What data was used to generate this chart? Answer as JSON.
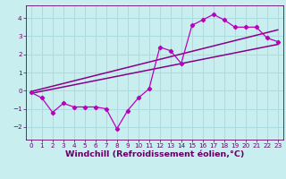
{
  "title": "",
  "xlabel": "Windchill (Refroidissement éolien,°C)",
  "ylabel": "",
  "bg_color": "#c8eef0",
  "grid_color": "#a8dce0",
  "line_color": "#880088",
  "line_color2": "#bb00bb",
  "xlim": [
    -0.5,
    23.5
  ],
  "ylim": [
    -2.7,
    4.7
  ],
  "xticks": [
    0,
    1,
    2,
    3,
    4,
    5,
    6,
    7,
    8,
    9,
    10,
    11,
    12,
    13,
    14,
    15,
    16,
    17,
    18,
    19,
    20,
    21,
    22,
    23
  ],
  "yticks": [
    -2,
    -1,
    0,
    1,
    2,
    3,
    4
  ],
  "data_x": [
    0,
    1,
    2,
    3,
    4,
    5,
    6,
    7,
    8,
    9,
    10,
    11,
    12,
    13,
    14,
    15,
    16,
    17,
    18,
    19,
    20,
    21,
    22,
    23
  ],
  "data_y": [
    -0.1,
    -0.4,
    -1.2,
    -0.7,
    -0.9,
    -0.9,
    -0.9,
    -1.0,
    -2.1,
    -1.1,
    -0.4,
    0.1,
    2.4,
    2.2,
    1.5,
    3.6,
    3.9,
    4.2,
    3.9,
    3.5,
    3.5,
    3.5,
    2.9,
    2.7
  ],
  "trend1_x": [
    0,
    23
  ],
  "trend1_y": [
    -0.15,
    2.55
  ],
  "trend2_x": [
    0,
    23
  ],
  "trend2_y": [
    -0.05,
    3.35
  ],
  "font_color": "#660066",
  "tick_fontsize": 5.2,
  "label_fontsize": 6.8
}
